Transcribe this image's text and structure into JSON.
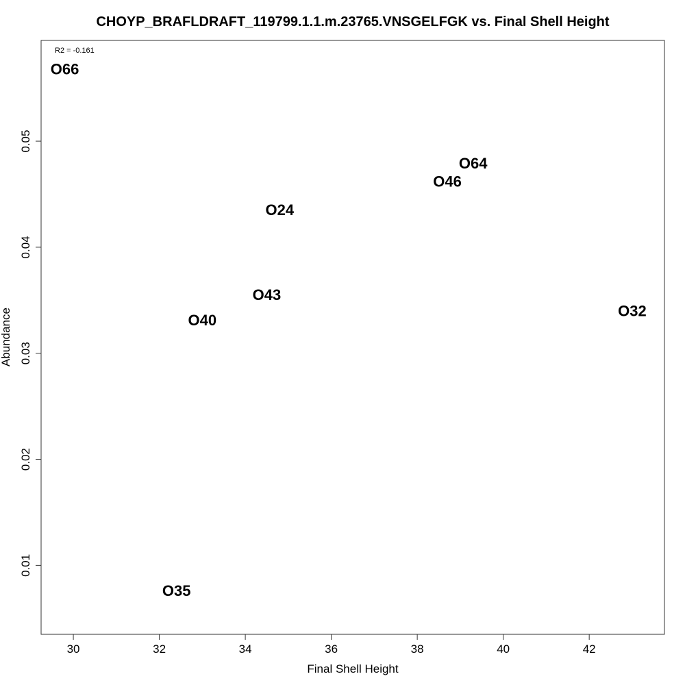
{
  "chart_data": {
    "type": "scatter",
    "title": "CHOYP_BRAFLDRAFT_119799.1.1.m.23765.VNSGELFGK vs. Final Shell Height",
    "xlabel": "Final Shell Height",
    "ylabel": "Abundance",
    "annotation": "R2 = -0.161",
    "xlim": [
      29.25,
      43.75
    ],
    "ylim": [
      0.0035,
      0.0595
    ],
    "xticks": [
      30,
      32,
      34,
      36,
      38,
      40,
      42
    ],
    "yticks": [
      0.01,
      0.02,
      0.03,
      0.04,
      0.05
    ],
    "ytick_labels": [
      "0.01",
      "0.02",
      "0.03",
      "0.04",
      "0.05"
    ],
    "points": [
      {
        "label": "O66",
        "x": 29.8,
        "y": 0.0568
      },
      {
        "label": "O64",
        "x": 39.3,
        "y": 0.0479
      },
      {
        "label": "O46",
        "x": 38.7,
        "y": 0.0462
      },
      {
        "label": "O24",
        "x": 34.8,
        "y": 0.0435
      },
      {
        "label": "O43",
        "x": 34.5,
        "y": 0.0355
      },
      {
        "label": "O40",
        "x": 33.0,
        "y": 0.0331
      },
      {
        "label": "O32",
        "x": 43.0,
        "y": 0.034
      },
      {
        "label": "O35",
        "x": 32.4,
        "y": 0.0076
      }
    ],
    "grid": false,
    "legend": "none"
  }
}
